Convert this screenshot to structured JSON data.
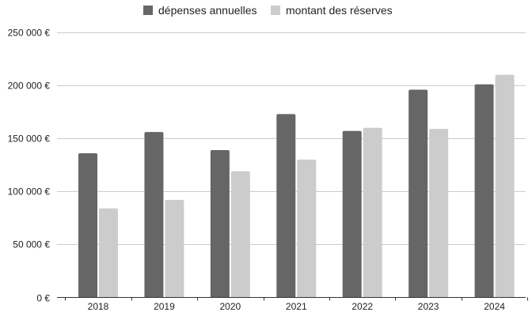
{
  "chart_data": {
    "type": "bar",
    "categories": [
      "2018",
      "2019",
      "2020",
      "2021",
      "2022",
      "2023",
      "2024"
    ],
    "series": [
      {
        "name": "dépenses annuelles",
        "color": "#666666",
        "values": [
          136000,
          156000,
          139000,
          173000,
          157000,
          196000,
          201000
        ]
      },
      {
        "name": "montant des réserves",
        "color": "#cccccc",
        "values": [
          84000,
          92000,
          119000,
          130000,
          160000,
          159000,
          210000
        ]
      }
    ],
    "ylim": [
      0,
      250000
    ],
    "yticks": [
      {
        "value": 0,
        "label": "0 €"
      },
      {
        "value": 50000,
        "label": "50 000 €"
      },
      {
        "value": 100000,
        "label": "100 000 €"
      },
      {
        "value": 150000,
        "label": "150 000 €"
      },
      {
        "value": 200000,
        "label": "200 000 €"
      },
      {
        "value": 250000,
        "label": "250 000 €"
      }
    ],
    "grid": true,
    "legend_position": "top-center",
    "gridline_color": "#cccccc",
    "axis_color": "#333333"
  }
}
